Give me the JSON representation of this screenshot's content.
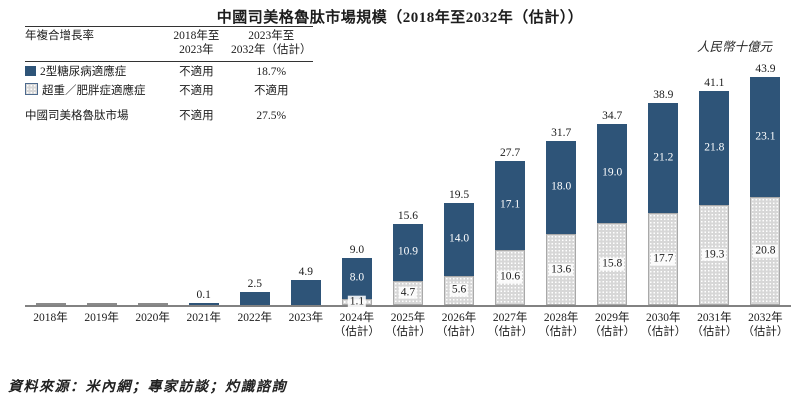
{
  "title": "中國司美格魯肽市場規模（2018年至2032年（估計））",
  "unit_label": "人民幣十億元",
  "source": "資料來源：米內網；專家訪談；灼識諮詢",
  "colors": {
    "bar_blue": "#2e5478",
    "bar_gray": "#d7d7d7",
    "axis": "#828282"
  },
  "cagr_table": {
    "metric_header": "年複合增長率",
    "col1_line1": "2018年至",
    "col1_line2": "2023年",
    "col2_line1": "2023年至",
    "col2_line2": "2032年（估計）",
    "rows": [
      {
        "label": "2型糖尿病適應症",
        "v1": "不適用",
        "v2": "18.7%"
      },
      {
        "label": "超重／肥胖症適應症",
        "v1": "不適用",
        "v2": "不適用"
      },
      {
        "label": "中國司美格魯肽市場",
        "v1": "不適用",
        "v2": "27.5%"
      }
    ]
  },
  "chart_data": {
    "type": "bar",
    "stacked": true,
    "title": "中國司美格魯肽市場規模（2018年至2032年（估計））",
    "ylabel": "人民幣十億元",
    "ylim": [
      0,
      45
    ],
    "grid": false,
    "legend_position": "top-left-table",
    "categories": [
      {
        "line1": "2018年"
      },
      {
        "line1": "2019年"
      },
      {
        "line1": "2020年"
      },
      {
        "line1": "2021年"
      },
      {
        "line1": "2022年"
      },
      {
        "line1": "2023年"
      },
      {
        "line1": "2024年",
        "line2": "（估計）"
      },
      {
        "line1": "2025年",
        "line2": "（估計）"
      },
      {
        "line1": "2026年",
        "line2": "（估計）"
      },
      {
        "line1": "2027年",
        "line2": "（估計）"
      },
      {
        "line1": "2028年",
        "line2": "（估計）"
      },
      {
        "line1": "2029年",
        "line2": "（估計）"
      },
      {
        "line1": "2030年",
        "line2": "（估計）"
      },
      {
        "line1": "2031年",
        "line2": "（估計）"
      },
      {
        "line1": "2032年",
        "line2": "（估計）"
      }
    ],
    "series": [
      {
        "name": "2型糖尿病適應症",
        "color": "#2e5478",
        "values": [
          0,
          0,
          0,
          0.1,
          2.5,
          4.9,
          8.0,
          10.9,
          14.0,
          17.1,
          18.0,
          19.0,
          21.2,
          21.8,
          23.1
        ]
      },
      {
        "name": "超重／肥胖症適應症",
        "color": "#d7d7d7",
        "pattern": "dots",
        "values": [
          0,
          0,
          0,
          0,
          0,
          0,
          1.1,
          4.7,
          5.6,
          10.6,
          13.6,
          15.8,
          17.7,
          19.3,
          20.8
        ]
      }
    ],
    "totals": [
      0,
      0,
      0,
      0.1,
      2.5,
      4.9,
      9.0,
      15.6,
      19.5,
      27.7,
      31.7,
      34.7,
      38.9,
      41.1,
      43.9
    ]
  }
}
